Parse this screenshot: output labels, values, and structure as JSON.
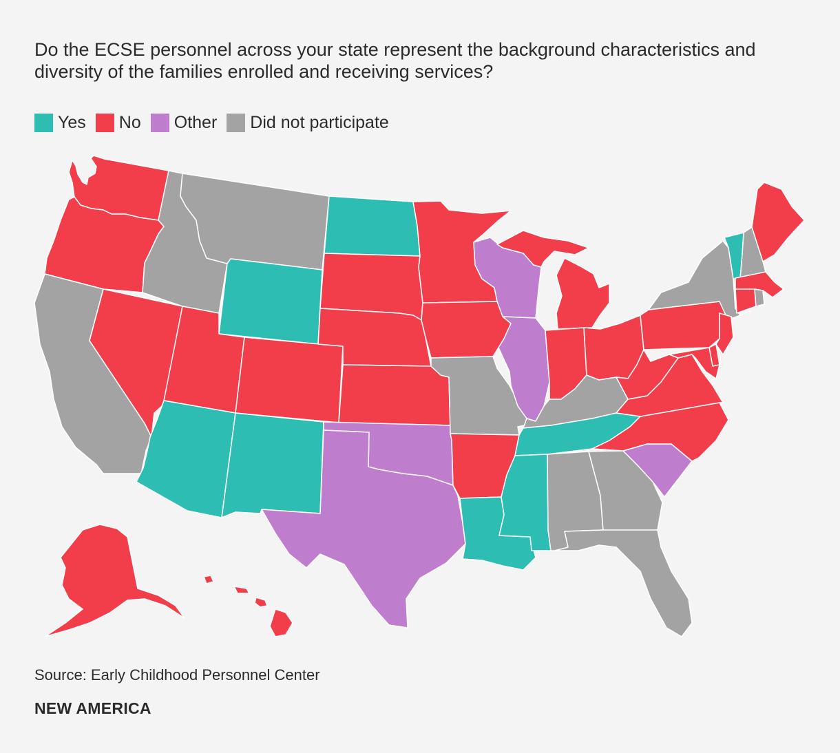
{
  "title": "Do the ECSE personnel across your state represent the background characteristics and diversity of the families enrolled and receiving services?",
  "legend": [
    {
      "label": "Yes",
      "category": "yes"
    },
    {
      "label": "No",
      "category": "no"
    },
    {
      "label": "Other",
      "category": "other"
    },
    {
      "label": "Did not participate",
      "category": "dnp"
    }
  ],
  "colors": {
    "yes": "#2ebdb3",
    "no": "#f23e4a",
    "other": "#bf7dcd",
    "dnp": "#a3a3a3",
    "background": "#f4f4f4",
    "border": "#ffffff"
  },
  "states": {
    "WA": "no",
    "OR": "no",
    "CA": "dnp",
    "NV": "no",
    "ID": "dnp",
    "MT": "dnp",
    "WY": "yes",
    "UT": "no",
    "AZ": "yes",
    "NM": "yes",
    "CO": "no",
    "ND": "yes",
    "SD": "no",
    "NE": "no",
    "KS": "no",
    "OK": "other",
    "TX": "other",
    "MN": "no",
    "IA": "no",
    "MO": "dnp",
    "AR": "no",
    "LA": "yes",
    "WI": "other",
    "IL": "other",
    "MI": "no",
    "IN": "no",
    "OH": "no",
    "KY": "dnp",
    "TN": "yes",
    "MS": "yes",
    "AL": "dnp",
    "GA": "dnp",
    "FL": "dnp",
    "SC": "other",
    "NC": "no",
    "VA": "no",
    "WV": "no",
    "PA": "no",
    "NY": "dnp",
    "VT": "yes",
    "NH": "dnp",
    "ME": "no",
    "MA": "no",
    "RI": "dnp",
    "CT": "no",
    "NJ": "no",
    "DE": "no",
    "MD": "no",
    "AK": "no",
    "HI": "no"
  },
  "source": "Source: Early Childhood Personnel Center",
  "brand": "NEW AMERICA"
}
